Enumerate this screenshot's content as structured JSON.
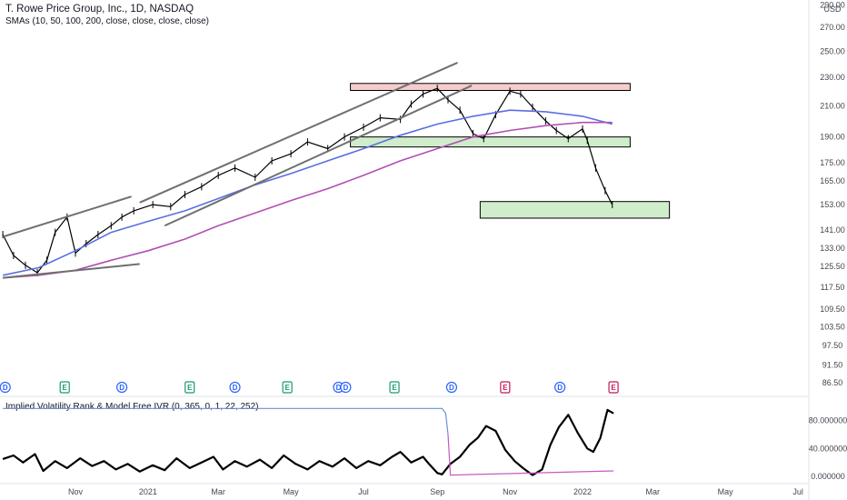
{
  "header": {
    "title": "T. Rowe Price Group, Inc., 1D, NASDAQ",
    "sma_label": "SMAs (10, 50, 100, 200, close, close, close, close)",
    "indicator_label": "Implied Volatility Rank & Model Free IVR (0, 365, 0, 1, 22, 252)",
    "currency": "USD"
  },
  "colors": {
    "price": "#000000",
    "sma100": "#5b6ee1",
    "sma200": "#b04fb3",
    "channel": "#6f6f6f",
    "resistance_fill": "#f6cccc",
    "support_fill": "#cfeccb",
    "zone_stroke": "#000000",
    "ivr": "#000000",
    "iv_rank": "#6b8fd8",
    "iv_rank_low": "#c75ac2",
    "dividend": "#2962ff",
    "earnings_green": "#1b9a6b",
    "earnings_red": "#c2185b"
  },
  "chart_data": [
    {
      "type": "line",
      "title": "T. Rowe Price Group, Inc., 1D, NASDAQ",
      "y_scale": "log",
      "ylim": [
        85,
        292
      ],
      "y_ticks": [
        290.0,
        270.0,
        250.0,
        230.0,
        210.0,
        190.0,
        175.0,
        165.0,
        153.0,
        141.0,
        133.0,
        125.5,
        117.5,
        109.5,
        103.5,
        97.5,
        91.5,
        86.5
      ],
      "y_tick_labels": [
        "290.00",
        "270.00",
        "250.00",
        "230.00",
        "210.00",
        "190.00",
        "175.00",
        "165.00",
        "153.00",
        "141.00",
        "133.00",
        "125.50",
        "117.50",
        "109.50",
        "103.50",
        "97.50",
        "91.50",
        "86.50"
      ],
      "x_ticks": [
        "Nov",
        "2021",
        "Mar",
        "May",
        "Jul",
        "Sep",
        "Nov",
        "2022",
        "Mar",
        "May",
        "Jul"
      ],
      "x_tick_positions": [
        "2020-11",
        "2021-01",
        "2021-03",
        "2021-05",
        "2021-07",
        "2021-09",
        "2021-11",
        "2022-01",
        "2022-03",
        "2022-05",
        "2022-07"
      ],
      "series": [
        {
          "name": "",
          "style": "price",
          "dates": [
            "2020-09-01",
            "2020-09-10",
            "2020-09-20",
            "2020-09-30",
            "2020-10-08",
            "2020-10-15",
            "2020-10-25",
            "2020-11-01",
            "2020-11-10",
            "2020-11-20",
            "2020-12-01",
            "2020-12-10",
            "2020-12-20",
            "2021-01-05",
            "2021-01-20",
            "2021-02-01",
            "2021-02-15",
            "2021-03-01",
            "2021-03-15",
            "2021-04-01",
            "2021-04-15",
            "2021-05-01",
            "2021-05-15",
            "2021-06-01",
            "2021-06-15",
            "2021-07-01",
            "2021-07-15",
            "2021-08-01",
            "2021-08-10",
            "2021-08-20",
            "2021-09-01",
            "2021-09-10",
            "2021-09-20",
            "2021-10-01",
            "2021-10-10",
            "2021-10-20",
            "2021-11-01",
            "2021-11-10",
            "2021-11-20",
            "2021-12-01",
            "2021-12-10",
            "2021-12-20",
            "2022-01-01",
            "2022-01-05",
            "2022-01-12",
            "2022-01-20",
            "2022-01-26"
          ],
          "values": [
            139,
            130,
            126,
            123,
            128,
            140,
            147,
            131,
            135,
            139,
            143,
            147,
            150,
            153,
            152,
            158,
            162,
            168,
            172,
            167,
            176,
            180,
            187,
            183,
            190,
            196,
            202,
            201,
            211,
            218,
            222,
            214,
            207,
            192,
            189,
            204,
            220,
            218,
            209,
            200,
            194,
            189,
            195,
            188,
            172,
            160,
            153
          ]
        },
        {
          "name": "",
          "style": "sma100",
          "dates": [
            "2020-09-01",
            "2020-10-01",
            "2020-11-01",
            "2020-12-01",
            "2021-01-01",
            "2021-02-01",
            "2021-03-01",
            "2021-04-01",
            "2021-05-01",
            "2021-06-01",
            "2021-07-01",
            "2021-08-01",
            "2021-09-01",
            "2021-10-01",
            "2021-11-01",
            "2021-12-01",
            "2022-01-01",
            "2022-01-26"
          ],
          "values": [
            122,
            125,
            132,
            140,
            145,
            150,
            156,
            163,
            169,
            176,
            183,
            191,
            198,
            203,
            207,
            206,
            203,
            198
          ]
        },
        {
          "name": "",
          "style": "sma200",
          "dates": [
            "2020-09-01",
            "2020-10-01",
            "2020-11-01",
            "2020-12-01",
            "2021-01-01",
            "2021-02-01",
            "2021-03-01",
            "2021-04-01",
            "2021-05-01",
            "2021-06-01",
            "2021-07-01",
            "2021-08-01",
            "2021-09-01",
            "2021-10-01",
            "2021-11-01",
            "2021-12-01",
            "2022-01-01",
            "2022-01-26"
          ],
          "values": [
            121,
            122,
            124,
            128,
            132,
            137,
            143,
            149,
            155,
            161,
            168,
            176,
            183,
            190,
            194,
            197,
            199,
            199
          ]
        }
      ],
      "trendlines": [
        {
          "name": "",
          "from": {
            "date": "2020-09-01",
            "value": 138
          },
          "to": {
            "date": "2020-12-18",
            "value": 157
          }
        },
        {
          "name": "",
          "from": {
            "date": "2020-09-01",
            "value": 121
          },
          "to": {
            "date": "2020-12-25",
            "value": 126.5
          }
        },
        {
          "name": "",
          "from": {
            "date": "2020-12-25",
            "value": 154
          },
          "to": {
            "date": "2021-09-18",
            "value": 241
          }
        },
        {
          "name": "",
          "from": {
            "date": "2021-01-15",
            "value": 143
          },
          "to": {
            "date": "2021-09-30",
            "value": 224
          }
        }
      ],
      "zones": [
        {
          "name": "",
          "kind": "resistance",
          "from_date": "2021-06-20",
          "to_date": "2022-02-10",
          "low": 220.5,
          "high": 225.5
        },
        {
          "name": "",
          "kind": "support",
          "from_date": "2021-06-20",
          "to_date": "2022-02-10",
          "low": 184,
          "high": 190
        },
        {
          "name": "",
          "kind": "support",
          "from_date": "2021-10-07",
          "to_date": "2022-03-15",
          "low": 146.5,
          "high": 154.5
        }
      ],
      "events": [
        {
          "label": "D",
          "kind": "dividend",
          "date": "2020-09-03"
        },
        {
          "label": "E",
          "kind": "earnings",
          "date": "2020-10-23"
        },
        {
          "label": "D",
          "kind": "dividend",
          "date": "2020-12-10"
        },
        {
          "label": "E",
          "kind": "earnings",
          "date": "2021-02-05"
        },
        {
          "label": "D",
          "kind": "dividend",
          "date": "2021-03-15"
        },
        {
          "label": "E",
          "kind": "earnings",
          "date": "2021-04-28"
        },
        {
          "label": "D",
          "kind": "dividend",
          "date": "2021-06-10"
        },
        {
          "label": "D",
          "kind": "dividend",
          "date": "2021-06-16"
        },
        {
          "label": "E",
          "kind": "earnings",
          "date": "2021-07-27"
        },
        {
          "label": "D",
          "kind": "dividend",
          "date": "2021-09-13"
        },
        {
          "label": "E",
          "kind": "earnings-red",
          "date": "2021-10-28"
        },
        {
          "label": "D",
          "kind": "dividend",
          "date": "2021-12-13"
        },
        {
          "label": "E",
          "kind": "earnings-red",
          "date": "2022-01-27"
        }
      ]
    },
    {
      "type": "line",
      "title": "Implied Volatility Rank & Model Free IVR (0, 365, 0, 1, 22, 252)",
      "ylim": [
        -5,
        100
      ],
      "y_ticks": [
        80,
        40,
        0
      ],
      "y_tick_labels": [
        "80.000000",
        "40.000000",
        "0.000000"
      ],
      "series": [
        {
          "name": "",
          "style": "ivr",
          "dates": [
            "2020-09-01",
            "2020-09-10",
            "2020-09-18",
            "2020-09-28",
            "2020-10-05",
            "2020-10-15",
            "2020-10-25",
            "2020-11-05",
            "2020-11-15",
            "2020-11-25",
            "2020-12-05",
            "2020-12-15",
            "2020-12-25",
            "2021-01-05",
            "2021-01-15",
            "2021-01-25",
            "2021-02-05",
            "2021-02-15",
            "2021-02-25",
            "2021-03-05",
            "2021-03-15",
            "2021-03-25",
            "2021-04-05",
            "2021-04-15",
            "2021-04-25",
            "2021-05-05",
            "2021-05-15",
            "2021-05-25",
            "2021-06-05",
            "2021-06-15",
            "2021-06-25",
            "2021-07-05",
            "2021-07-15",
            "2021-07-25",
            "2021-08-01",
            "2021-08-10",
            "2021-08-20",
            "2021-08-25",
            "2021-09-01",
            "2021-09-05",
            "2021-09-12",
            "2021-09-20",
            "2021-09-28",
            "2021-10-05",
            "2021-10-12",
            "2021-10-20",
            "2021-10-28",
            "2021-11-05",
            "2021-11-12",
            "2021-11-20",
            "2021-11-28",
            "2021-12-05",
            "2021-12-12",
            "2021-12-20",
            "2021-12-28",
            "2022-01-05",
            "2022-01-10",
            "2022-01-16",
            "2022-01-22",
            "2022-01-27"
          ],
          "values": [
            25,
            30,
            20,
            32,
            8,
            22,
            12,
            26,
            15,
            22,
            10,
            18,
            7,
            16,
            9,
            26,
            12,
            20,
            28,
            10,
            22,
            14,
            24,
            12,
            30,
            18,
            10,
            22,
            14,
            26,
            12,
            22,
            16,
            28,
            35,
            20,
            28,
            18,
            5,
            3,
            18,
            28,
            45,
            55,
            72,
            65,
            38,
            22,
            12,
            2,
            10,
            45,
            70,
            88,
            62,
            40,
            35,
            55,
            95,
            90
          ]
        },
        {
          "name": "",
          "style": "iv_rank",
          "dates": [
            "2020-09-01",
            "2021-09-05",
            "2021-09-08",
            "2021-09-10",
            "2021-09-12",
            "2022-01-27"
          ],
          "values": [
            97,
            97,
            90,
            60,
            2,
            8
          ]
        }
      ]
    }
  ]
}
